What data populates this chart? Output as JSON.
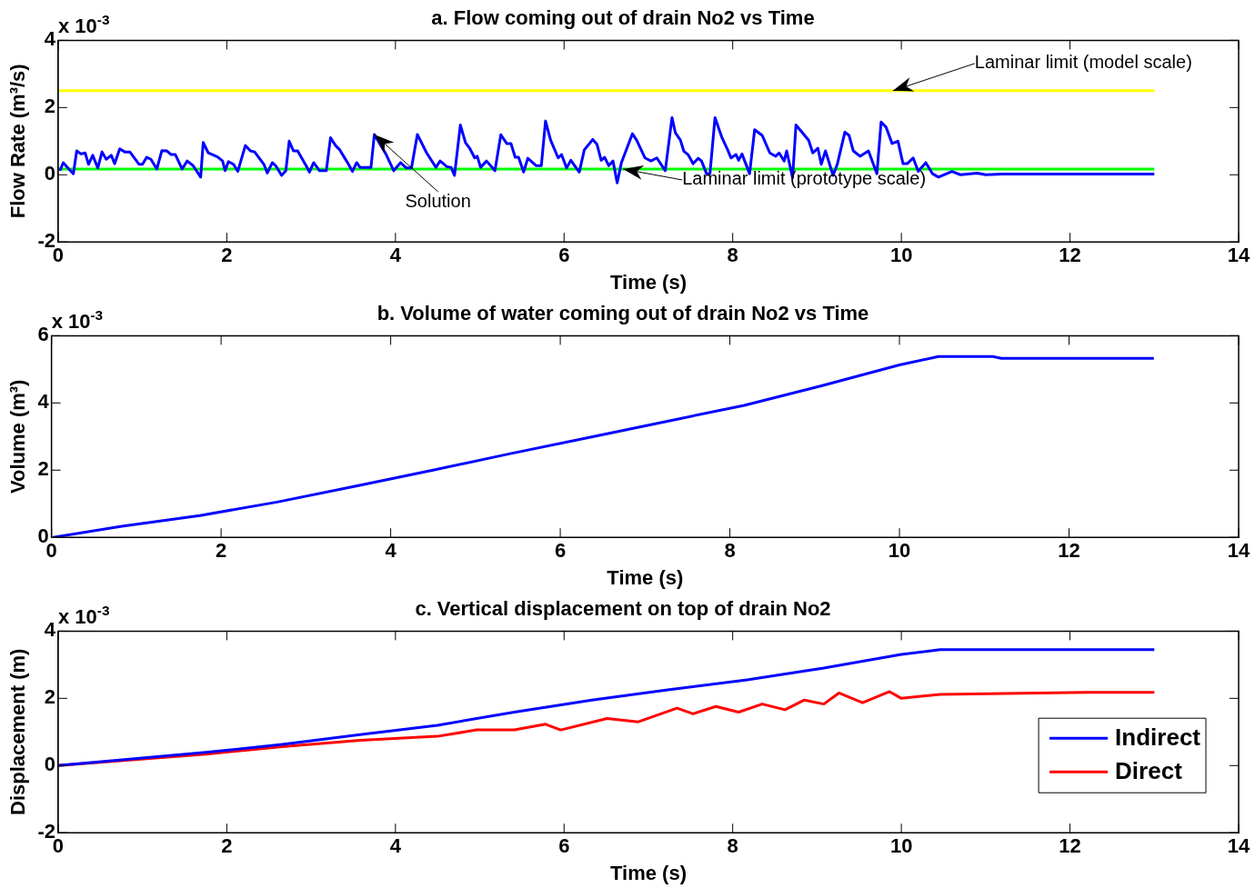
{
  "chart_data": [
    {
      "type": "line",
      "title": "a. Flow coming out of drain No2 vs Time",
      "xlabel": "Time (s)",
      "ylabel": "Flow Rate (m³/s)",
      "xlim": [
        0,
        14
      ],
      "xticks": [
        0,
        2,
        4,
        6,
        8,
        10,
        12,
        14
      ],
      "ylim": [
        -2,
        4
      ],
      "yticks": [
        -2,
        0,
        2,
        4
      ],
      "grid": false,
      "legend": false,
      "annotations": [
        "x 10$^{-3}$",
        {
          "text": "Solution",
          "x": 3.75,
          "y": 1.2
        },
        {
          "text": "Laminar limit (model scale)",
          "x": 9.9,
          "y": 2.5
        },
        {
          "text": "Laminar limit (prototype scale)",
          "x": 6.7,
          "y": 0.17
        }
      ],
      "series": [
        {
          "color": "#0000ff",
          "x": [
            0.02,
            0.06,
            0.11,
            0.18,
            0.22,
            0.27,
            0.32,
            0.36,
            0.41,
            0.47,
            0.52,
            0.57,
            0.63,
            0.67,
            0.73,
            0.79,
            0.85,
            0.96,
            1.0,
            1.05,
            1.1,
            1.17,
            1.23,
            1.29,
            1.34,
            1.39,
            1.47,
            1.53,
            1.6,
            1.69,
            1.72,
            1.78,
            1.89,
            1.95,
            1.98,
            2.02,
            2.08,
            2.13,
            2.22,
            2.28,
            2.33,
            2.41,
            2.44,
            2.48,
            2.54,
            2.58,
            2.65,
            2.7,
            2.74,
            2.79,
            2.84,
            2.94,
            2.98,
            3.03,
            3.1,
            3.18,
            3.23,
            3.29,
            3.34,
            3.42,
            3.49,
            3.54,
            3.58,
            3.71,
            3.75,
            3.89,
            3.98,
            4.06,
            4.13,
            4.19,
            4.26,
            4.37,
            4.48,
            4.53,
            4.61,
            4.66,
            4.7,
            4.77,
            4.83,
            4.88,
            4.94,
            4.97,
            5.01,
            5.08,
            5.18,
            5.25,
            5.32,
            5.37,
            5.42,
            5.46,
            5.52,
            5.57,
            5.67,
            5.73,
            5.78,
            5.84,
            5.93,
            5.97,
            6.03,
            6.08,
            6.18,
            6.24,
            6.34,
            6.39,
            6.44,
            6.48,
            6.53,
            6.58,
            6.63,
            6.68,
            6.81,
            6.86,
            6.96,
            7.03,
            7.1,
            7.2,
            7.28,
            7.32,
            7.38,
            7.42,
            7.47,
            7.53,
            7.59,
            7.63,
            7.69,
            7.73,
            7.79,
            7.87,
            7.94,
            7.98,
            8.04,
            8.07,
            8.11,
            8.2,
            8.26,
            8.35,
            8.44,
            8.51,
            8.55,
            8.61,
            8.64,
            8.71,
            8.75,
            8.9,
            8.95,
            9.01,
            9.05,
            9.1,
            9.19,
            9.24,
            9.33,
            9.38,
            9.43,
            9.51,
            9.61,
            9.71,
            9.76,
            9.82,
            9.89,
            9.96,
            10.02,
            10.07,
            10.14,
            10.2,
            10.29,
            10.37,
            10.44,
            10.6,
            10.7,
            10.9,
            11.0,
            11.2,
            13.0
          ],
          "values": [
            0.12,
            0.36,
            0.22,
            0.03,
            0.71,
            0.62,
            0.65,
            0.31,
            0.58,
            0.2,
            0.68,
            0.46,
            0.58,
            0.33,
            0.77,
            0.68,
            0.68,
            0.31,
            0.31,
            0.52,
            0.46,
            0.17,
            0.72,
            0.71,
            0.6,
            0.6,
            0.17,
            0.41,
            0.27,
            -0.07,
            0.96,
            0.65,
            0.53,
            0.41,
            0.12,
            0.39,
            0.31,
            0.1,
            0.87,
            0.71,
            0.68,
            0.41,
            0.31,
            0.05,
            0.36,
            0.27,
            -0.02,
            0.12,
            1.0,
            0.71,
            0.71,
            0.27,
            0.08,
            0.36,
            0.12,
            0.12,
            1.1,
            0.87,
            0.74,
            0.41,
            0.1,
            0.36,
            0.22,
            0.22,
            1.2,
            0.6,
            0.12,
            0.36,
            0.2,
            0.2,
            1.2,
            0.65,
            0.22,
            0.41,
            0.24,
            0.22,
            -0.02,
            1.48,
            0.96,
            0.79,
            0.5,
            0.55,
            0.22,
            0.41,
            0.12,
            1.19,
            0.93,
            0.93,
            0.52,
            0.52,
            0.08,
            0.49,
            0.27,
            0.27,
            1.6,
            1.03,
            0.5,
            0.6,
            0.2,
            0.43,
            0.08,
            0.74,
            1.05,
            0.91,
            0.43,
            0.52,
            0.27,
            0.41,
            -0.24,
            0.36,
            1.22,
            1.03,
            0.5,
            0.41,
            0.5,
            0.12,
            1.7,
            1.25,
            1.03,
            0.7,
            0.6,
            0.33,
            0.49,
            0.41,
            0.03,
            0.03,
            1.7,
            1.12,
            0.74,
            0.5,
            0.6,
            0.43,
            0.62,
            0.03,
            1.34,
            1.17,
            0.65,
            0.55,
            0.65,
            0.41,
            0.71,
            -0.09,
            1.48,
            1.03,
            0.65,
            0.79,
            0.31,
            0.71,
            -0.02,
            0.31,
            1.27,
            1.17,
            0.71,
            0.55,
            0.71,
            0.03,
            1.57,
            1.41,
            0.93,
            1.0,
            0.33,
            0.33,
            0.5,
            0.1,
            0.36,
            0.03,
            -0.07,
            0.1,
            0.0,
            0.05,
            0.0,
            0.02,
            0.02
          ]
        },
        {
          "color": "#ffff00",
          "x": [
            0,
            13
          ],
          "values": [
            2.5,
            2.5
          ]
        },
        {
          "color": "#00ff00",
          "x": [
            0,
            13
          ],
          "values": [
            0.17,
            0.17
          ]
        }
      ]
    },
    {
      "type": "line",
      "title": "b. Volume of water coming out of drain No2 vs Time",
      "xlabel": "Time (s)",
      "ylabel": "Volume (m³)",
      "xlim": [
        0,
        14
      ],
      "xticks": [
        0,
        2,
        4,
        6,
        8,
        10,
        12,
        14
      ],
      "ylim": [
        0,
        6
      ],
      "yticks": [
        0,
        2,
        4,
        6
      ],
      "grid": false,
      "legend": false,
      "annotations": [
        "x 10$^{-3}$"
      ],
      "series": [
        {
          "color": "#0000ff",
          "x": [
            0.02,
            0.83,
            1.75,
            2.66,
            3.58,
            4.5,
            5.41,
            6.33,
            7.25,
            8.17,
            9.08,
            10.0,
            10.46,
            11.1,
            11.2,
            13.0
          ],
          "values": [
            0.0,
            0.33,
            0.65,
            1.05,
            1.52,
            2.0,
            2.49,
            2.97,
            3.45,
            3.93,
            4.51,
            5.13,
            5.38,
            5.38,
            5.33,
            5.33
          ]
        }
      ]
    },
    {
      "type": "line",
      "title": "c. Vertical displacement on top of drain No2",
      "xlabel": "Time (s)",
      "ylabel": "Displacement (m)",
      "xlim": [
        0,
        14
      ],
      "xticks": [
        0,
        2,
        4,
        6,
        8,
        10,
        12,
        14
      ],
      "ylim": [
        -2,
        4
      ],
      "yticks": [
        -2,
        0,
        2,
        4
      ],
      "grid": false,
      "legend": "bottom right",
      "annotations": [
        "x 10$^{-3}$"
      ],
      "series": [
        {
          "name": "Indirect",
          "color": "#0000ff",
          "x": [
            0.0,
            1.75,
            2.66,
            3.58,
            4.5,
            5.41,
            6.33,
            7.25,
            8.17,
            9.08,
            10.0,
            10.46,
            13.0
          ],
          "values": [
            0.0,
            0.39,
            0.63,
            0.92,
            1.2,
            1.59,
            1.95,
            2.26,
            2.55,
            2.9,
            3.31,
            3.45,
            3.45
          ]
        },
        {
          "name": "Direct",
          "color": "#ff0000",
          "x": [
            0.0,
            1.75,
            2.66,
            3.58,
            4.5,
            4.96,
            5.41,
            5.78,
            5.96,
            6.51,
            6.88,
            7.34,
            7.53,
            7.8,
            8.07,
            8.35,
            8.62,
            8.85,
            9.08,
            9.26,
            9.54,
            9.86,
            10.0,
            10.46,
            12.2,
            13.0
          ],
          "values": [
            0.0,
            0.34,
            0.56,
            0.75,
            0.87,
            1.06,
            1.06,
            1.23,
            1.06,
            1.4,
            1.3,
            1.71,
            1.54,
            1.76,
            1.59,
            1.83,
            1.66,
            1.95,
            1.83,
            2.16,
            1.87,
            2.2,
            2.0,
            2.12,
            2.18,
            2.18
          ]
        }
      ]
    }
  ]
}
